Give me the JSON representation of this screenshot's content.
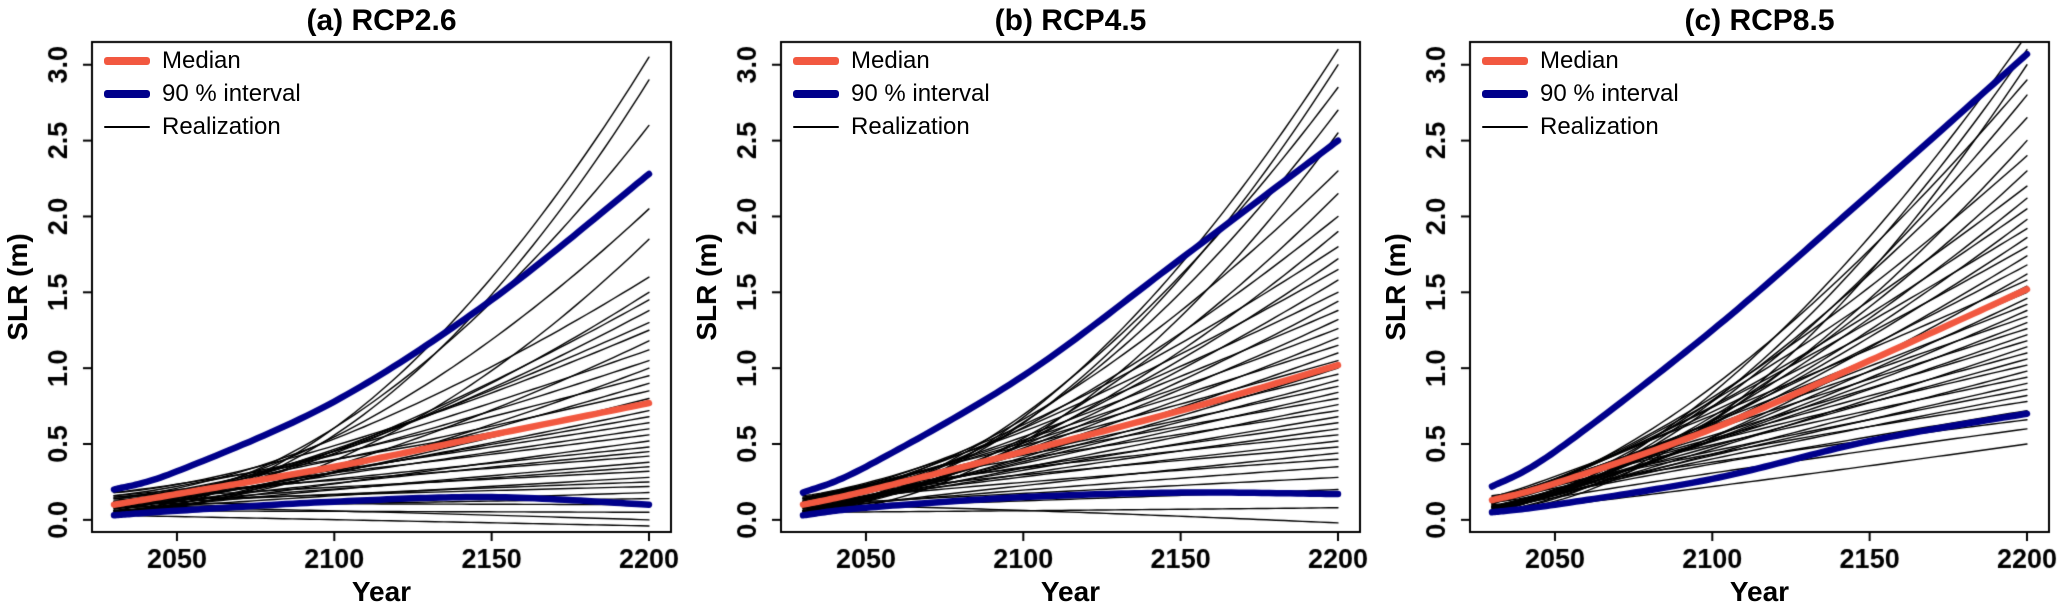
{
  "colors": {
    "median": "#f25840",
    "interval": "#00008b",
    "realization": "#000000",
    "axis": "#000000",
    "background": "#ffffff"
  },
  "chart_data": [
    {
      "type": "line",
      "title": "(a) RCP2.6",
      "xlabel": "Year",
      "ylabel": "SLR (m)",
      "xlim": [
        2023,
        2207
      ],
      "ylim": [
        -0.08,
        3.15
      ],
      "xticks": [
        2050,
        2100,
        2150,
        2200
      ],
      "xtick_labels": [
        "2050",
        "2100",
        "2150",
        "2200"
      ],
      "yticks": [
        0.0,
        0.5,
        1.0,
        1.5,
        2.0,
        2.5,
        3.0
      ],
      "ytick_labels": [
        "0.0",
        "0.5",
        "1.0",
        "1.5",
        "2.0",
        "2.5",
        "3.0"
      ],
      "legend_entries": [
        "Median",
        "90 % interval",
        "Realization"
      ],
      "legend_position": "top-left",
      "grid": false,
      "median": {
        "x": [
          2030,
          2050,
          2100,
          2150,
          2200
        ],
        "y": [
          0.1,
          0.17,
          0.35,
          0.56,
          0.77
        ]
      },
      "upper": {
        "x": [
          2030,
          2050,
          2100,
          2150,
          2200
        ],
        "y": [
          0.2,
          0.32,
          0.78,
          1.45,
          2.28
        ]
      },
      "lower": {
        "x": [
          2030,
          2050,
          2100,
          2150,
          2200
        ],
        "y": [
          0.03,
          0.06,
          0.12,
          0.15,
          0.1
        ]
      },
      "realizations": [
        [
          0.05,
          3.05,
          1.9
        ],
        [
          0.08,
          2.9,
          2.0
        ],
        [
          0.1,
          2.6,
          1.8
        ],
        [
          0.12,
          2.05,
          1.7
        ],
        [
          0.06,
          1.85,
          1.9
        ],
        [
          0.15,
          1.6,
          1.5
        ],
        [
          0.1,
          1.5,
          1.6
        ],
        [
          0.05,
          1.45,
          1.4
        ],
        [
          0.12,
          1.38,
          1.5
        ],
        [
          0.08,
          1.3,
          1.3
        ],
        [
          0.18,
          1.25,
          1.4
        ],
        [
          0.06,
          1.18,
          1.5
        ],
        [
          0.1,
          1.12,
          1.2
        ],
        [
          0.14,
          1.05,
          1.3
        ],
        [
          0.04,
          1.0,
          1.4
        ],
        [
          0.16,
          0.95,
          1.2
        ],
        [
          0.08,
          0.9,
          1.3
        ],
        [
          0.12,
          0.85,
          1.1
        ],
        [
          0.05,
          0.8,
          1.2
        ],
        [
          0.18,
          0.76,
          1.1
        ],
        [
          0.1,
          0.72,
          1.2
        ],
        [
          0.06,
          0.68,
          1.0
        ],
        [
          0.14,
          0.64,
          1.1
        ],
        [
          0.08,
          0.6,
          1.0
        ],
        [
          0.16,
          0.56,
          1.1
        ],
        [
          0.04,
          0.52,
          1.0
        ],
        [
          0.12,
          0.48,
          1.0
        ],
        [
          0.07,
          0.45,
          0.9
        ],
        [
          0.15,
          0.42,
          1.0
        ],
        [
          0.05,
          0.38,
          0.9
        ],
        [
          0.1,
          0.35,
          1.0
        ],
        [
          0.13,
          0.32,
          0.9
        ],
        [
          0.06,
          0.28,
          0.9
        ],
        [
          0.09,
          0.25,
          0.8
        ],
        [
          0.12,
          0.22,
          0.9
        ],
        [
          0.04,
          0.18,
          0.8
        ],
        [
          0.08,
          0.14,
          0.9
        ],
        [
          0.11,
          0.1,
          1.0
        ],
        [
          0.06,
          0.05,
          1.0
        ],
        [
          0.09,
          0.0,
          1.2
        ],
        [
          0.03,
          -0.04,
          1.0
        ]
      ]
    },
    {
      "type": "line",
      "title": "(b) RCP4.5",
      "xlabel": "Year",
      "ylabel": "SLR (m)",
      "xlim": [
        2023,
        2207
      ],
      "ylim": [
        -0.08,
        3.15
      ],
      "xticks": [
        2050,
        2100,
        2150,
        2200
      ],
      "xtick_labels": [
        "2050",
        "2100",
        "2150",
        "2200"
      ],
      "yticks": [
        0.0,
        0.5,
        1.0,
        1.5,
        2.0,
        2.5,
        3.0
      ],
      "ytick_labels": [
        "0.0",
        "0.5",
        "1.0",
        "1.5",
        "2.0",
        "2.5",
        "3.0"
      ],
      "legend_entries": [
        "Median",
        "90 % interval",
        "Realization"
      ],
      "legend_position": "top-left",
      "grid": false,
      "median": {
        "x": [
          2030,
          2050,
          2100,
          2150,
          2200
        ],
        "y": [
          0.1,
          0.19,
          0.45,
          0.72,
          1.02
        ]
      },
      "upper": {
        "x": [
          2030,
          2050,
          2100,
          2150,
          2200
        ],
        "y": [
          0.18,
          0.35,
          0.95,
          1.72,
          2.5
        ]
      },
      "lower": {
        "x": [
          2030,
          2050,
          2100,
          2150,
          2200
        ],
        "y": [
          0.03,
          0.08,
          0.15,
          0.18,
          0.17
        ]
      },
      "realizations": [
        [
          0.06,
          3.1,
          1.8
        ],
        [
          0.1,
          3.0,
          1.9
        ],
        [
          0.08,
          2.85,
          1.7
        ],
        [
          0.12,
          2.7,
          1.8
        ],
        [
          0.05,
          2.55,
          1.9
        ],
        [
          0.14,
          2.3,
          1.6
        ],
        [
          0.08,
          2.15,
          1.7
        ],
        [
          0.11,
          2.0,
          1.5
        ],
        [
          0.06,
          1.9,
          1.6
        ],
        [
          0.15,
          1.8,
          1.4
        ],
        [
          0.09,
          1.72,
          1.5
        ],
        [
          0.12,
          1.65,
          1.3
        ],
        [
          0.05,
          1.58,
          1.4
        ],
        [
          0.16,
          1.5,
          1.3
        ],
        [
          0.08,
          1.44,
          1.4
        ],
        [
          0.11,
          1.38,
          1.2
        ],
        [
          0.06,
          1.32,
          1.3
        ],
        [
          0.14,
          1.26,
          1.2
        ],
        [
          0.09,
          1.2,
          1.3
        ],
        [
          0.12,
          1.15,
          1.1
        ],
        [
          0.05,
          1.1,
          1.2
        ],
        [
          0.15,
          1.05,
          1.1
        ],
        [
          0.08,
          1.0,
          1.2
        ],
        [
          0.11,
          0.96,
          1.0
        ],
        [
          0.06,
          0.92,
          1.1
        ],
        [
          0.13,
          0.88,
          1.0
        ],
        [
          0.09,
          0.84,
          1.1
        ],
        [
          0.12,
          0.8,
          0.9
        ],
        [
          0.05,
          0.76,
          1.0
        ],
        [
          0.14,
          0.72,
          0.9
        ],
        [
          0.08,
          0.68,
          1.0
        ],
        [
          0.11,
          0.64,
          0.9
        ],
        [
          0.06,
          0.6,
          0.9
        ],
        [
          0.13,
          0.56,
          0.8
        ],
        [
          0.09,
          0.52,
          0.9
        ],
        [
          0.12,
          0.48,
          0.8
        ],
        [
          0.05,
          0.44,
          0.9
        ],
        [
          0.1,
          0.4,
          0.8
        ],
        [
          0.07,
          0.35,
          0.9
        ],
        [
          0.1,
          0.28,
          1.0
        ],
        [
          0.08,
          0.2,
          1.1
        ],
        [
          0.05,
          0.08,
          1.2
        ],
        [
          0.1,
          -0.02,
          1.3
        ]
      ]
    },
    {
      "type": "line",
      "title": "(c) RCP8.5",
      "xlabel": "Year",
      "ylabel": "SLR (m)",
      "xlim": [
        2023,
        2207
      ],
      "ylim": [
        -0.08,
        3.15
      ],
      "xticks": [
        2050,
        2100,
        2150,
        2200
      ],
      "xtick_labels": [
        "2050",
        "2100",
        "2150",
        "2200"
      ],
      "yticks": [
        0.0,
        0.5,
        1.0,
        1.5,
        2.0,
        2.5,
        3.0
      ],
      "ytick_labels": [
        "0.0",
        "0.5",
        "1.0",
        "1.5",
        "2.0",
        "2.5",
        "3.0"
      ],
      "legend_entries": [
        "Median",
        "90 % interval",
        "Realization"
      ],
      "legend_position": "top-left",
      "grid": false,
      "median": {
        "x": [
          2030,
          2050,
          2100,
          2150,
          2200
        ],
        "y": [
          0.13,
          0.24,
          0.6,
          1.05,
          1.52
        ]
      },
      "upper": {
        "x": [
          2030,
          2050,
          2100,
          2150,
          2200
        ],
        "y": [
          0.22,
          0.45,
          1.25,
          2.15,
          3.07
        ]
      },
      "lower": {
        "x": [
          2030,
          2050,
          2100,
          2150,
          2200
        ],
        "y": [
          0.05,
          0.1,
          0.27,
          0.52,
          0.7
        ]
      },
      "realizations": [
        [
          0.08,
          3.2,
          1.6
        ],
        [
          0.12,
          3.1,
          1.7
        ],
        [
          0.06,
          3.0,
          1.8
        ],
        [
          0.15,
          2.9,
          1.5
        ],
        [
          0.09,
          2.8,
          1.6
        ],
        [
          0.12,
          2.65,
          1.5
        ],
        [
          0.06,
          2.5,
          1.6
        ],
        [
          0.16,
          2.4,
          1.4
        ],
        [
          0.1,
          2.3,
          1.5
        ],
        [
          0.13,
          2.2,
          1.3
        ],
        [
          0.07,
          2.12,
          1.4
        ],
        [
          0.15,
          2.05,
          1.3
        ],
        [
          0.09,
          1.98,
          1.4
        ],
        [
          0.12,
          1.92,
          1.2
        ],
        [
          0.06,
          1.86,
          1.3
        ],
        [
          0.14,
          1.8,
          1.2
        ],
        [
          0.08,
          1.74,
          1.3
        ],
        [
          0.11,
          1.68,
          1.2
        ],
        [
          0.05,
          1.62,
          1.3
        ],
        [
          0.15,
          1.58,
          1.1
        ],
        [
          0.09,
          1.54,
          1.2
        ],
        [
          0.12,
          1.5,
          1.1
        ],
        [
          0.06,
          1.46,
          1.2
        ],
        [
          0.14,
          1.42,
          1.1
        ],
        [
          0.08,
          1.38,
          1.2
        ],
        [
          0.11,
          1.34,
          1.0
        ],
        [
          0.05,
          1.3,
          1.1
        ],
        [
          0.13,
          1.26,
          1.0
        ],
        [
          0.09,
          1.22,
          1.1
        ],
        [
          0.12,
          1.18,
          1.0
        ],
        [
          0.06,
          1.14,
          1.1
        ],
        [
          0.14,
          1.1,
          1.0
        ],
        [
          0.08,
          1.06,
          1.0
        ],
        [
          0.11,
          1.02,
          0.9
        ],
        [
          0.05,
          0.98,
          1.0
        ],
        [
          0.13,
          0.94,
          0.9
        ],
        [
          0.09,
          0.9,
          1.0
        ],
        [
          0.12,
          0.86,
          0.9
        ],
        [
          0.06,
          0.82,
          0.9
        ],
        [
          0.1,
          0.78,
          0.8
        ],
        [
          0.08,
          0.72,
          0.9
        ],
        [
          0.11,
          0.66,
          0.8
        ],
        [
          0.07,
          0.6,
          0.9
        ],
        [
          0.05,
          0.5,
          1.1
        ]
      ]
    }
  ]
}
